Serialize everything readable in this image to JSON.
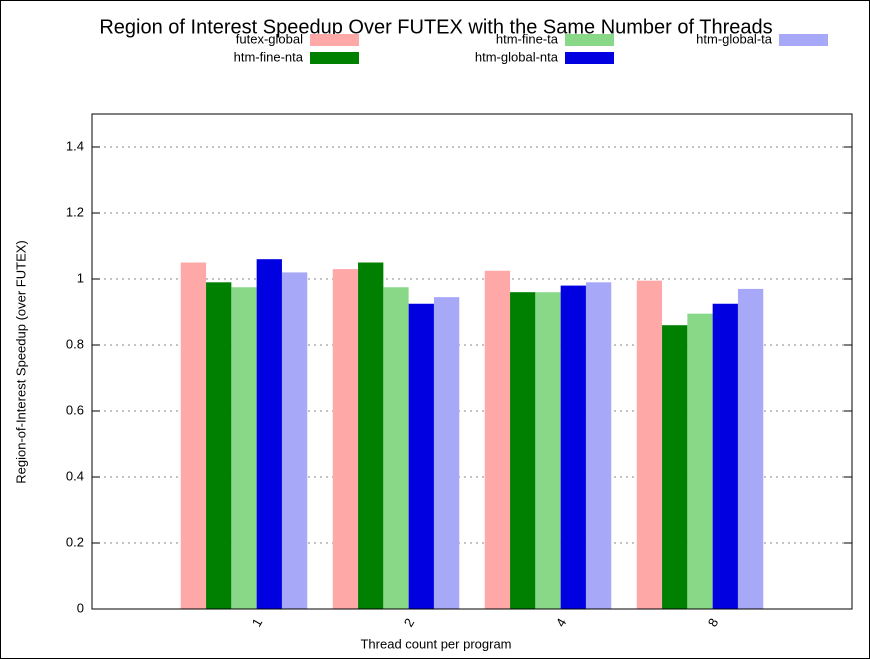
{
  "chart_data": {
    "type": "bar",
    "title": "Region of Interest Speedup Over FUTEX with the Same Number of Threads",
    "x_label": "Thread count per program",
    "y_label": "Region-of-Interest Speedup (over FUTEX)",
    "categories": [
      "1",
      "2",
      "4",
      "8"
    ],
    "series": [
      {
        "name": "futex-global",
        "color": "#ffa8a8",
        "values": [
          1.05,
          1.03,
          1.025,
          0.995
        ]
      },
      {
        "name": "htm-fine-nta",
        "color": "#008000",
        "values": [
          0.99,
          1.05,
          0.96,
          0.86
        ]
      },
      {
        "name": "htm-fine-ta",
        "color": "#88d888",
        "values": [
          0.975,
          0.975,
          0.96,
          0.895
        ]
      },
      {
        "name": "htm-global-nta",
        "color": "#0000e0",
        "values": [
          1.06,
          0.925,
          0.98,
          0.925
        ]
      },
      {
        "name": "htm-global-ta",
        "color": "#a8a8f8",
        "values": [
          1.02,
          0.945,
          0.99,
          0.97
        ]
      }
    ],
    "ylim": [
      0,
      1.5
    ],
    "yticks": [
      0,
      0.2,
      0.4,
      0.6,
      0.8,
      1,
      1.2,
      1.4
    ],
    "grid": true,
    "legend": "top"
  }
}
